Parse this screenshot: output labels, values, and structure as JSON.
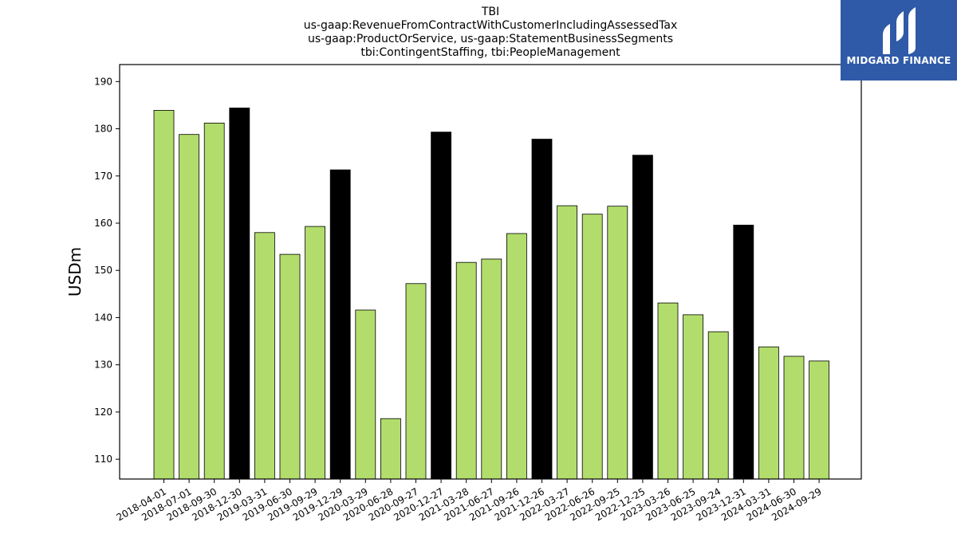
{
  "chart_data": {
    "type": "bar",
    "title_lines": [
      "TBI",
      "us-gaap:RevenueFromContractWithCustomerIncludingAssessedTax",
      "us-gaap:ProductOrService, us-gaap:StatementBusinessSegments",
      "tbi:ContingentStaffing, tbi:PeopleManagement"
    ],
    "ylabel": "USDm",
    "ylim": [
      105.8,
      193.6
    ],
    "yticks": [
      110,
      120,
      130,
      140,
      150,
      160,
      170,
      180,
      190
    ],
    "grid": false,
    "colors": {
      "quarter": "#b2dd6c",
      "fiscal_year_end": "#000000",
      "edge": "#000000"
    },
    "categories": [
      "2018-04-01",
      "2018-07-01",
      "2018-09-30",
      "2018-12-30",
      "2019-03-31",
      "2019-06-30",
      "2019-09-29",
      "2019-12-29",
      "2020-03-29",
      "2020-06-28",
      "2020-09-27",
      "2020-12-27",
      "2021-03-28",
      "2021-06-27",
      "2021-09-26",
      "2021-12-26",
      "2022-03-27",
      "2022-06-26",
      "2022-09-25",
      "2022-12-25",
      "2023-03-26",
      "2023-06-25",
      "2023-09-24",
      "2023-12-31",
      "2024-03-31",
      "2024-06-30",
      "2024-09-29"
    ],
    "values": [
      183.9,
      178.8,
      181.2,
      184.4,
      158.0,
      153.4,
      159.3,
      171.3,
      141.6,
      118.6,
      147.2,
      179.3,
      151.7,
      152.4,
      157.8,
      177.8,
      163.7,
      161.9,
      163.6,
      174.4,
      143.1,
      140.6,
      137.0,
      159.6,
      133.8,
      131.8,
      130.8
    ],
    "highlight": [
      false,
      false,
      false,
      true,
      false,
      false,
      false,
      true,
      false,
      false,
      false,
      true,
      false,
      false,
      false,
      true,
      false,
      false,
      false,
      true,
      false,
      false,
      false,
      true,
      false,
      false,
      false
    ]
  },
  "logo": {
    "text": "MIDGARD FINANCE"
  }
}
